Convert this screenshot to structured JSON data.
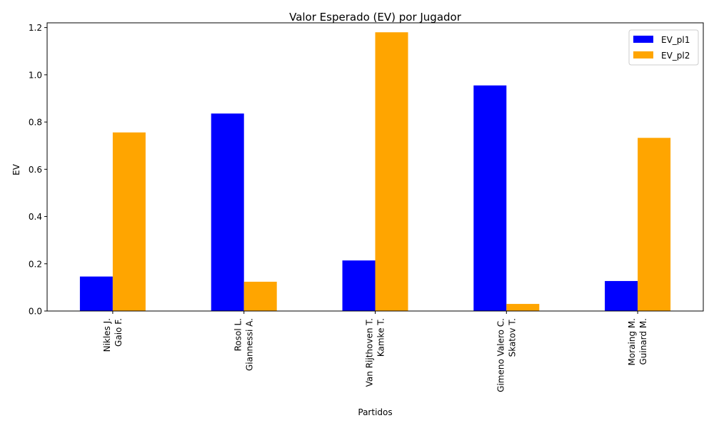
{
  "chart_data": {
    "type": "bar",
    "title": "Valor Esperado (EV) por Jugador",
    "xlabel": "Partidos",
    "ylabel": "EV",
    "categories": [
      [
        "Nikles J.",
        "Gaio F."
      ],
      [
        "Rosol L.",
        "Giannessi A."
      ],
      [
        "Van Rijthoven T.",
        "Kamke T."
      ],
      [
        "Gimeno Valero C.",
        "Skatov T."
      ],
      [
        "Moraing M.",
        "Guinard M."
      ]
    ],
    "series": [
      {
        "name": "EV_pl1",
        "color": "#0000ff",
        "values": [
          0.146,
          0.836,
          0.214,
          0.955,
          0.127
        ]
      },
      {
        "name": "EV_pl2",
        "color": "#ffa500",
        "values": [
          0.756,
          0.124,
          1.18,
          0.03,
          0.733
        ]
      }
    ],
    "ylim": [
      0,
      1.22
    ],
    "yticks": [
      "0.0",
      "0.2",
      "0.4",
      "0.6",
      "0.8",
      "1.0",
      "1.2"
    ],
    "grid": false,
    "legend_position": "top-right"
  }
}
